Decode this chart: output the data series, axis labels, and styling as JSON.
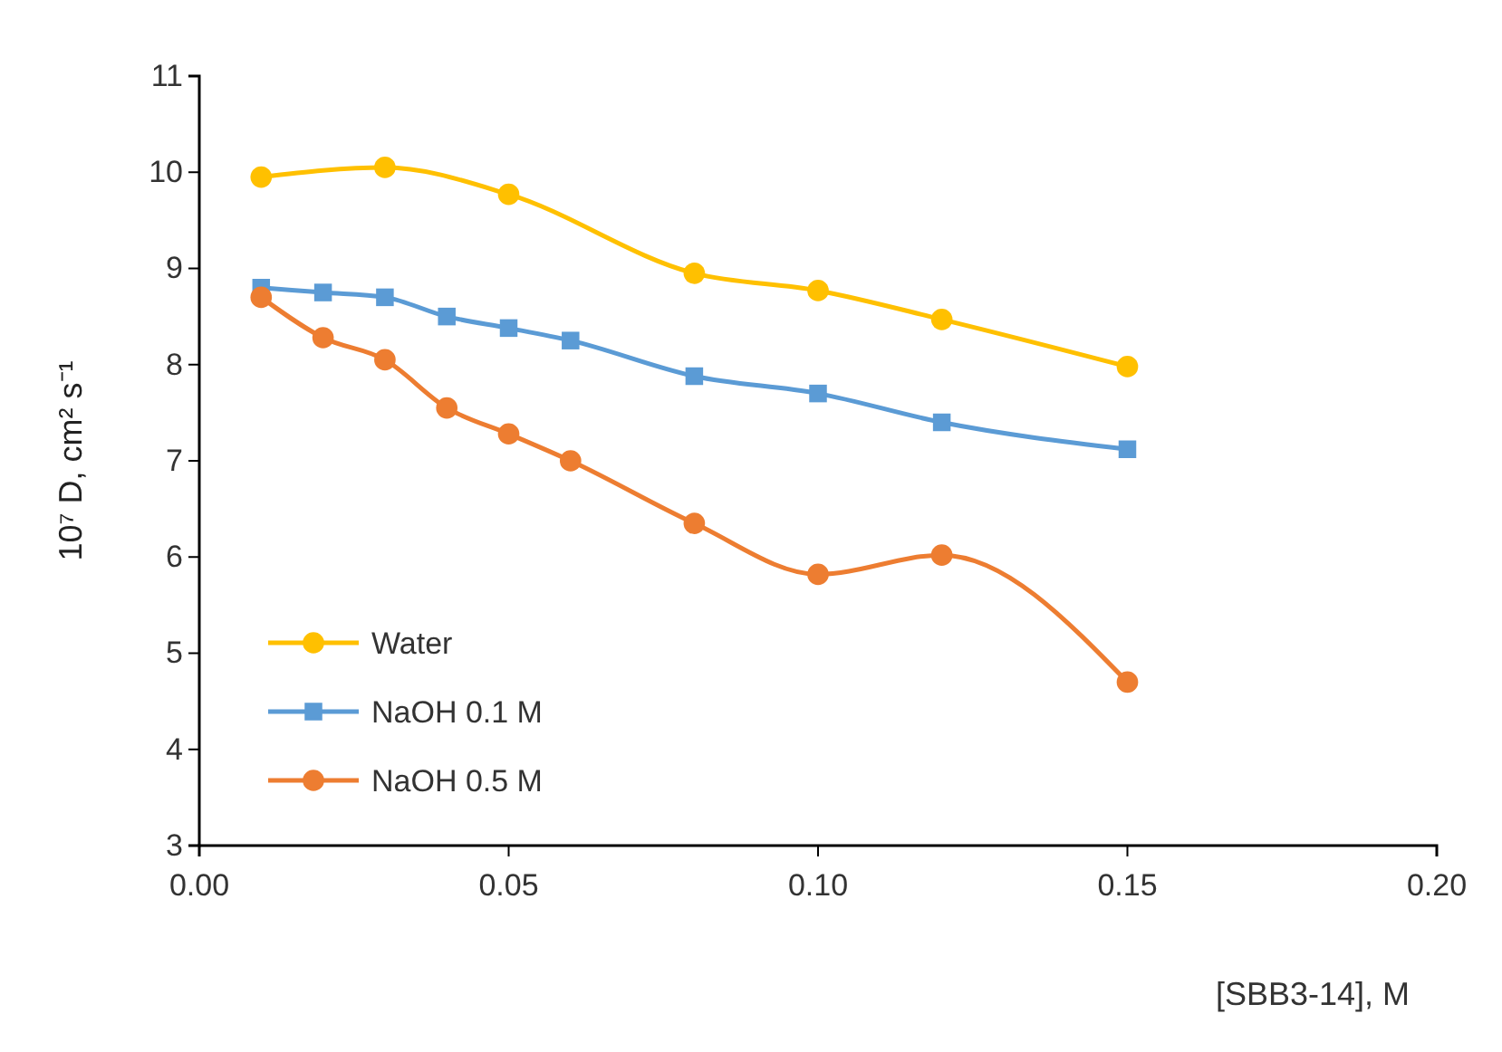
{
  "chart_data": {
    "type": "line",
    "xlabel": "[SBB3-14], M",
    "ylabel": "10⁷ D, cm² s⁻¹",
    "xlim": [
      0,
      0.2
    ],
    "xticks": [
      {
        "value": 0,
        "label": "0.00"
      },
      {
        "value": 0.05,
        "label": "0.05"
      },
      {
        "value": 0.1,
        "label": "0.10"
      },
      {
        "value": 0.15,
        "label": "0.15"
      },
      {
        "value": 0.2,
        "label": "0.20"
      }
    ],
    "ylim": [
      3,
      11
    ],
    "yticks": [
      3,
      4,
      5,
      6,
      7,
      8,
      9,
      10,
      11
    ],
    "grid": false,
    "legend": "bottom left",
    "line_style": "solid",
    "series": [
      {
        "name": "Water",
        "color": "#ffc000",
        "marker": "circle",
        "x": [
          0.01,
          0.03,
          0.05,
          0.08,
          0.1,
          0.12,
          0.15
        ],
        "values": [
          9.95,
          10.05,
          9.77,
          8.95,
          8.77,
          8.47,
          7.98
        ]
      },
      {
        "name": "NaOH 0.1 M",
        "color": "#5b9bd5",
        "marker": "square",
        "x": [
          0.01,
          0.02,
          0.03,
          0.04,
          0.05,
          0.06,
          0.08,
          0.1,
          0.12,
          0.15
        ],
        "values": [
          8.8,
          8.75,
          8.7,
          8.5,
          8.38,
          8.25,
          7.88,
          7.7,
          7.4,
          7.12
        ]
      },
      {
        "name": "NaOH 0.5 M",
        "color": "#ed7d31",
        "marker": "circle",
        "x": [
          0.01,
          0.02,
          0.03,
          0.04,
          0.05,
          0.06,
          0.08,
          0.1,
          0.12,
          0.15
        ],
        "values": [
          8.7,
          8.28,
          8.05,
          7.55,
          7.28,
          7.0,
          6.35,
          5.82,
          6.02,
          4.7
        ]
      }
    ]
  }
}
